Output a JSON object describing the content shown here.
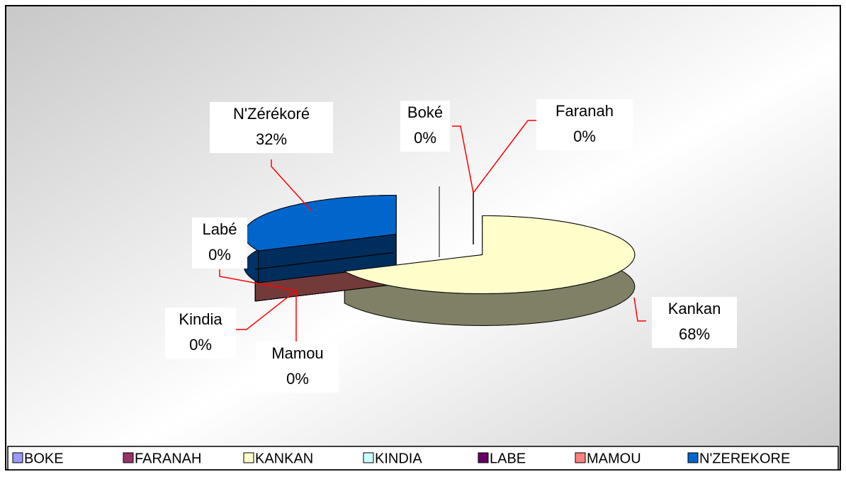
{
  "chart_data": {
    "type": "pie3d",
    "categories": [
      "BOKE",
      "FARANAH",
      "KANKAN",
      "KINDIA",
      "LABE",
      "MAMOU",
      "N'ZEREKORE"
    ],
    "label_names": [
      "Boké",
      "Faranah",
      "Kankan",
      "Kindia",
      "Labé",
      "Mamou",
      "N'Zérékoré"
    ],
    "values": [
      0,
      0,
      68,
      0,
      0,
      0,
      32
    ],
    "value_labels": [
      "0%",
      "0%",
      "68%",
      "0%",
      "0%",
      "0%",
      "32%"
    ],
    "colors": [
      "#9999ff",
      "#993366",
      "#ffffcc",
      "#ccffff",
      "#660066",
      "#ff8080",
      "#0066cc"
    ],
    "legend": "bottom"
  }
}
